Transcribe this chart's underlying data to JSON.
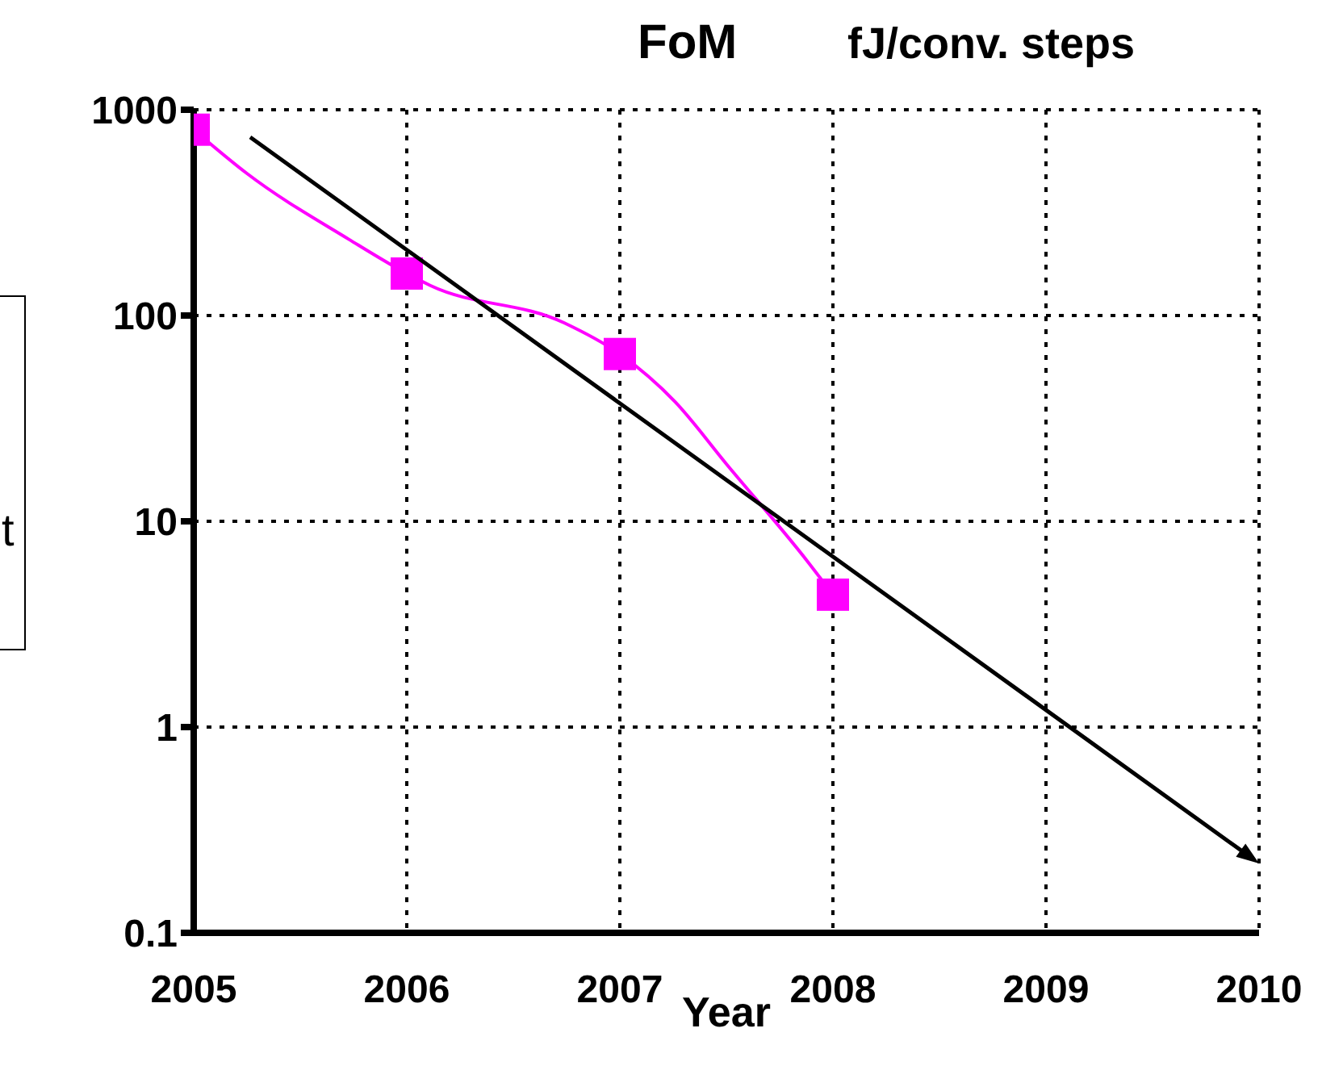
{
  "chart_data": {
    "type": "line",
    "title": "FoM",
    "ylabel": "fJ/conv. steps",
    "xlabel": "Year",
    "annotations": [
      "t"
    ],
    "log": "y",
    "grid": true,
    "legend": false,
    "xlim": [
      2005,
      2010
    ],
    "xticks": [
      2005,
      2006,
      2007,
      2008,
      2009,
      2010
    ],
    "ylim": [
      0.1,
      1000
    ],
    "yticks": [
      0.1,
      1,
      10,
      100,
      1000
    ],
    "series": [
      {
        "x": [
          2005,
          2005.25,
          2005.73,
          2006,
          2006.11,
          2006.74,
          2007,
          2007.26,
          2007.5,
          2007.88,
          2008
        ],
        "values": [
          800,
          490,
          234,
          160,
          140,
          92,
          65,
          38,
          19,
          6.4,
          4.4
        ],
        "color": "#ff00ff",
        "marker": "none"
      },
      {
        "type": "scatter",
        "x": [
          2005,
          2006,
          2007,
          2008
        ],
        "values": [
          800,
          160,
          65,
          4.4
        ],
        "color": "#ff00ff",
        "marker": "square"
      }
    ]
  }
}
